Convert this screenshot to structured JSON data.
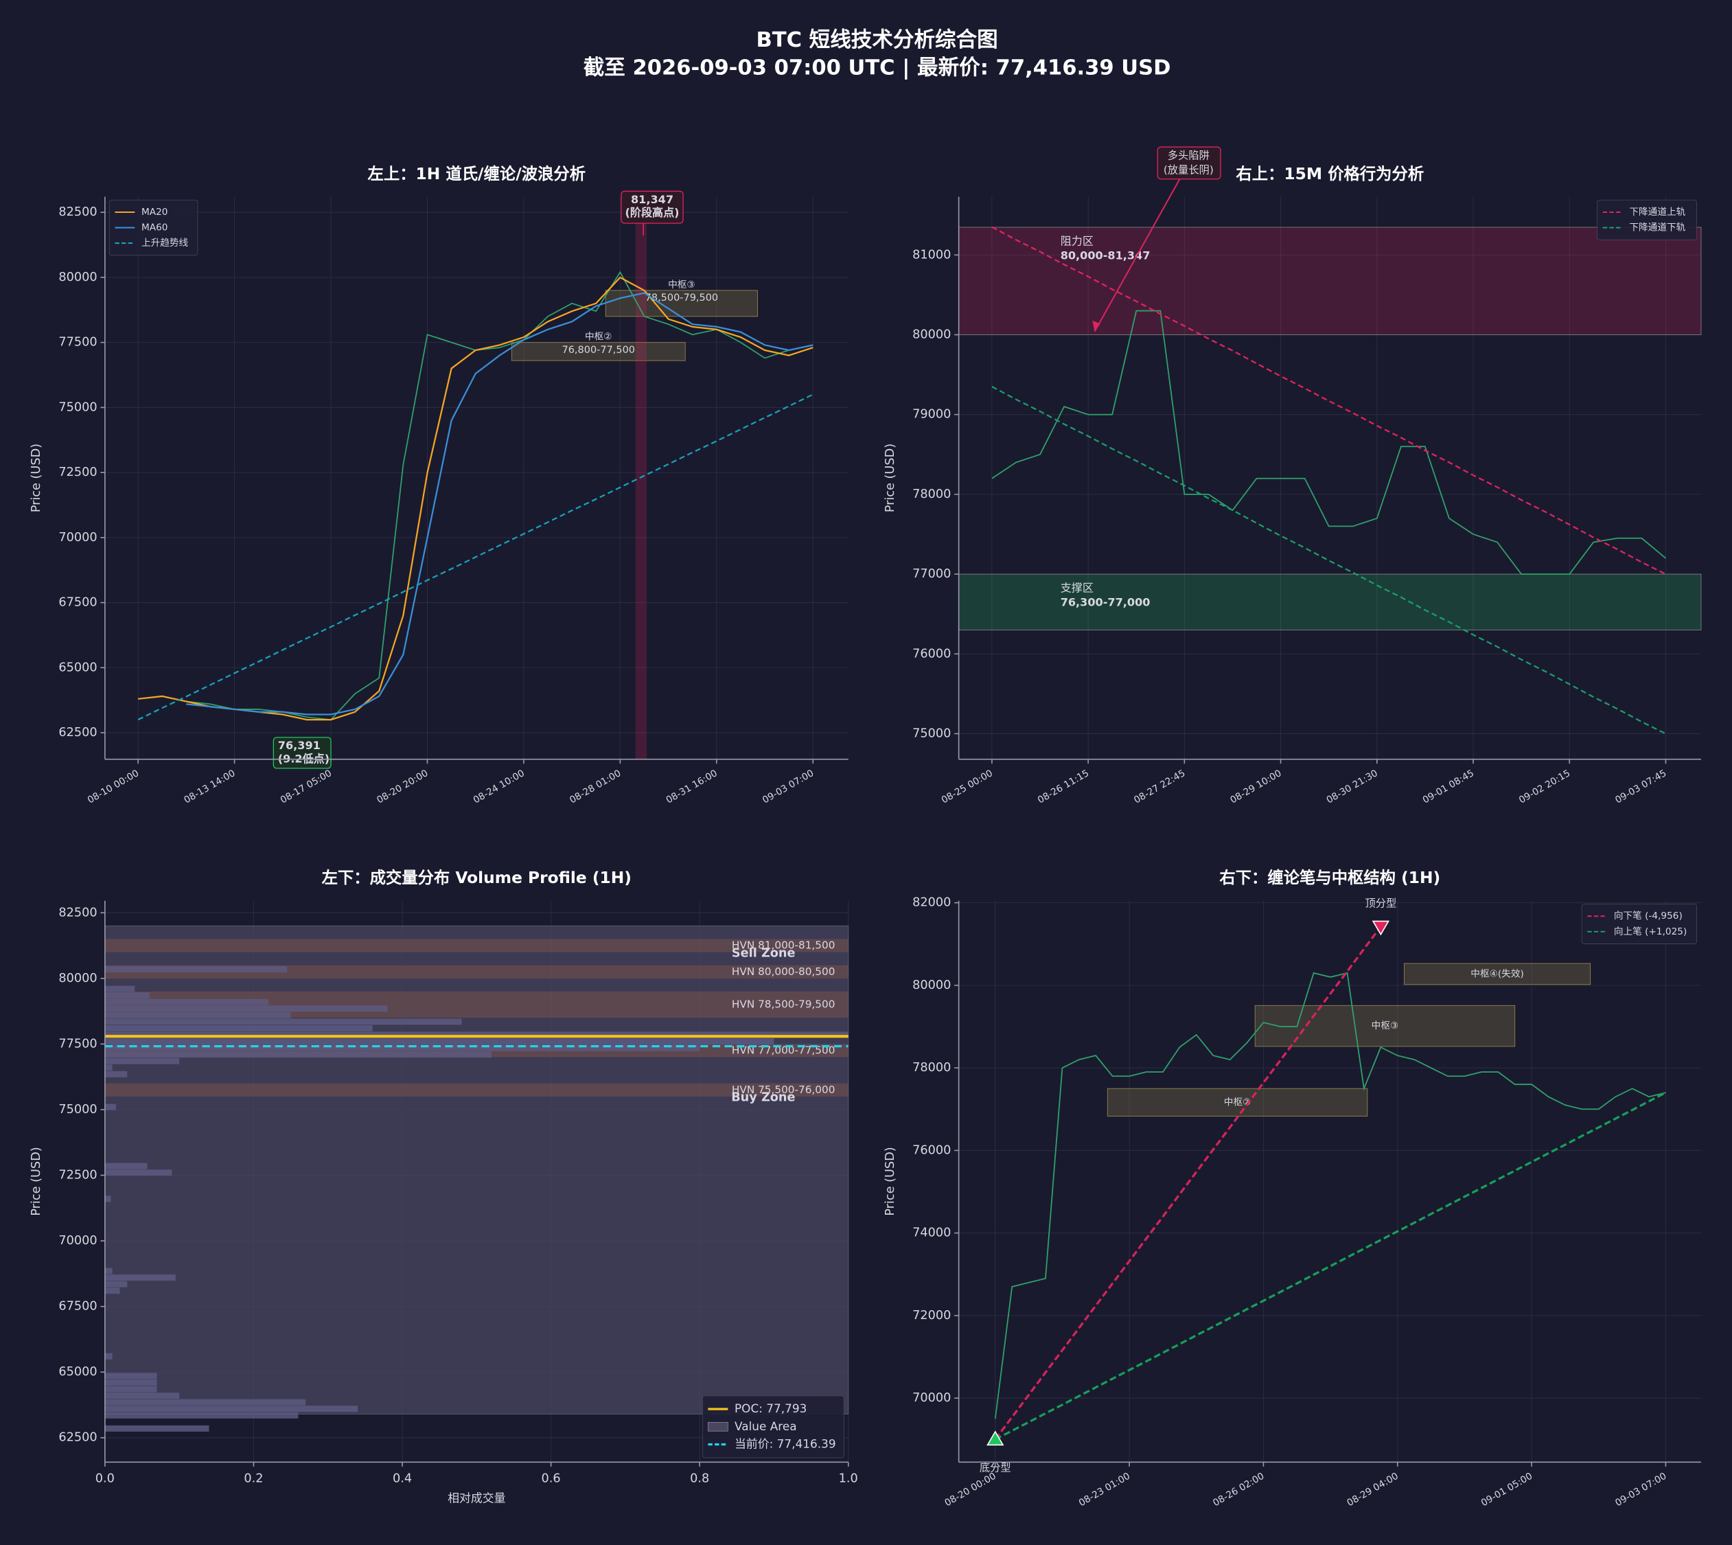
{
  "title": "BTC 短线技术分析综合图",
  "subtitle": "截至 2026-09-03 07:00 UTC | 最新价: 77,416.39 USD",
  "chart_data": [
    {
      "type": "line",
      "title": "左上：1H 道氏/缠论/波浪分析",
      "y_label": "Price (USD)",
      "categories": [
        "08-10 00:00",
        null,
        null,
        null,
        "08-13 14:00",
        null,
        null,
        null,
        "08-17 05:00",
        null,
        null,
        null,
        "08-20 20:00",
        null,
        null,
        null,
        "08-24 10:00",
        null,
        null,
        null,
        "08-28 01:00",
        null,
        null,
        null,
        "08-31 16:00",
        null,
        null,
        null,
        "09-03 07:00"
      ],
      "values": [
        63800,
        63900,
        63700,
        63600,
        63400,
        63400,
        63300,
        63100,
        63000,
        64000,
        64600,
        72800,
        77800,
        77500,
        77200,
        77300,
        77600,
        78500,
        79000,
        78700,
        80200,
        78500,
        78200,
        77800,
        78000,
        77500,
        76900,
        77200,
        77400
      ],
      "color": "#2ea36b",
      "series": [
        {
          "name": "MA20",
          "color": "#f5a623",
          "linestyle": "solid",
          "values": [
            63800,
            63900,
            63700,
            63500,
            63400,
            63300,
            63200,
            63000,
            63000,
            63300,
            64100,
            67000,
            72500,
            76500,
            77200,
            77400,
            77700,
            78300,
            78700,
            79000,
            80000,
            79500,
            78400,
            78100,
            78000,
            77700,
            77200,
            77000,
            77300
          ]
        },
        {
          "name": "MA60",
          "color": "#3a8fd9",
          "linestyle": "solid",
          "values": [
            null,
            null,
            63600,
            63500,
            63400,
            63300,
            63300,
            63200,
            63200,
            63400,
            63900,
            65500,
            70000,
            74500,
            76300,
            77000,
            77600,
            78000,
            78300,
            78900,
            79200,
            79400,
            78800,
            78200,
            78100,
            77900,
            77400,
            77200,
            77400
          ]
        },
        {
          "name": "上升趋势线",
          "color": "#17a2b8",
          "linestyle": "dashed",
          "values": [
            63000,
            63450,
            63890,
            64340,
            64790,
            65230,
            65680,
            66130,
            66570,
            67020,
            67460,
            67910,
            68360,
            68800,
            69250,
            69700,
            70140,
            70590,
            71040,
            71480,
            71930,
            72380,
            72820,
            73270,
            73710,
            74160,
            74610,
            75050,
            75500
          ]
        }
      ],
      "zones": [
        {
          "label": "中枢②",
          "range": "76,800-77,500",
          "low": 76800,
          "high": 77500,
          "color": "#8a7d4a"
        },
        {
          "label": "中枢③",
          "range": "78,500-79,500",
          "low": 78500,
          "high": 79500,
          "color": "#8a7d4a"
        }
      ],
      "low_label": [
        "76,391",
        "(9.2低点)"
      ],
      "high_label": [
        "81,347",
        "(阶段高点)"
      ],
      "ylim": [
        61480,
        83100
      ],
      "yticks": [
        62500,
        65000,
        67500,
        70000,
        72500,
        75000,
        77500,
        80000,
        82500
      ],
      "grid": true,
      "legend": "upper left"
    },
    {
      "type": "line",
      "title": "右上：15M 价格行为分析",
      "y_label": "Price (USD)",
      "categories": [
        "08-25 00:00",
        null,
        null,
        null,
        "08-26 11:15",
        null,
        null,
        null,
        "08-27 22:45",
        null,
        null,
        null,
        "08-29 10:00",
        null,
        null,
        null,
        "08-30 21:30",
        null,
        null,
        null,
        "09-01 08:45",
        null,
        null,
        null,
        "09-02 20:15",
        null,
        null,
        null,
        "09-03 07:45"
      ],
      "values": [
        78200,
        78400,
        78500,
        79100,
        79000,
        79000,
        80300,
        80300,
        78000,
        78000,
        77800,
        78200,
        78200,
        78200,
        77600,
        77600,
        77700,
        78600,
        78600,
        77700,
        77500,
        77400,
        77000,
        77000,
        77000,
        77400,
        77450,
        77450,
        77200
      ],
      "color": "#2ea36b",
      "series": [
        {
          "name": "下降通道上轨",
          "color": "#e0245e",
          "linestyle": "dashed",
          "values": [
            81350,
            81190,
            81040,
            80880,
            80730,
            80570,
            80420,
            80260,
            80110,
            79950,
            79800,
            79640,
            79480,
            79330,
            79170,
            79020,
            78860,
            78710,
            78550,
            78400,
            78240,
            78090,
            77930,
            77780,
            77620,
            77460,
            77310,
            77150,
            77000
          ]
        },
        {
          "name": "下降通道下轨",
          "color": "#1a9e6a",
          "linestyle": "dashed",
          "values": [
            79350,
            79190,
            79040,
            78880,
            78730,
            78570,
            78420,
            78260,
            78110,
            77950,
            77800,
            77640,
            77480,
            77330,
            77170,
            77020,
            76860,
            76710,
            76550,
            76400,
            76240,
            76090,
            75930,
            75780,
            75620,
            75460,
            75310,
            75150,
            75000
          ]
        }
      ],
      "zones": [
        {
          "label": "阻力区",
          "range": "80,000-81,347",
          "low": 80000,
          "high": 81347,
          "color": "#e0245e"
        },
        {
          "label": "支撑区",
          "range": "76,300-77,000",
          "low": 76300,
          "high": 77000,
          "color": "#22c55e"
        }
      ],
      "trap_label": [
        "多头陷阱",
        "(放量长阴)"
      ],
      "ylim": [
        74680,
        81730
      ],
      "yticks": [
        75000,
        76000,
        77000,
        78000,
        79000,
        80000,
        81000
      ],
      "grid": true,
      "legend": "upper right"
    },
    {
      "type": "barh",
      "title": "左下：成交量分布 Volume Profile (1H)",
      "y_label": "Price (USD)",
      "x_label": "相对成交量",
      "y": [
        62850,
        63350,
        63600,
        63850,
        64100,
        64350,
        64600,
        64850,
        65600,
        68100,
        68350,
        68600,
        68850,
        71600,
        72600,
        72850,
        75100,
        76350,
        76600,
        76850,
        77100,
        77350,
        77600,
        77850,
        78100,
        78350,
        78600,
        78850,
        79100,
        79350,
        79600,
        80350
      ],
      "values": [
        0.14,
        0.26,
        0.34,
        0.27,
        0.1,
        0.07,
        0.07,
        0.07,
        0.01,
        0.02,
        0.03,
        0.095,
        0.01,
        0.008,
        0.09,
        0.057,
        0.015,
        0.03,
        0.01,
        0.1,
        0.52,
        0.8,
        0.9,
        1.0,
        0.36,
        0.48,
        0.25,
        0.38,
        0.22,
        0.06,
        0.04,
        0.245
      ],
      "color": "#5c5a80",
      "value_area": {
        "name": "Value Area",
        "low": 63400,
        "high": 82000,
        "color": "#4a4562"
      },
      "hvn": [
        {
          "label": "HVN 81,000-81,500",
          "low": 81000,
          "high": 81500
        },
        {
          "label": "HVN 80,000-80,500",
          "low": 80000,
          "high": 80500
        },
        {
          "label": "HVN 78,500-79,500",
          "low": 78500,
          "high": 79500
        },
        {
          "label": "HVN 77,000-77,500",
          "low": 77000,
          "high": 77500
        },
        {
          "label": "HVN 75,500-76,000",
          "low": 75500,
          "high": 76000
        }
      ],
      "sell_zone": "Sell Zone",
      "buy_zone": "Buy Zone",
      "poc": {
        "name": "POC: 77,793",
        "value": 77793,
        "color": "#f5c518"
      },
      "current": {
        "name": "当前价: 77,416.39",
        "value": 77416.39,
        "color": "#22d3ee"
      },
      "xlim": [
        0,
        1
      ],
      "xticks": [
        {
          "value": 0,
          "label": "0.0"
        },
        0.2,
        0.4,
        0.6,
        0.8,
        {
          "value": 1,
          "label": "1.0"
        }
      ],
      "ylim": [
        61570,
        82960
      ],
      "yticks": [
        62500,
        65000,
        67500,
        70000,
        72500,
        75000,
        77500,
        80000,
        82500
      ],
      "grid": true,
      "legend": "lower right"
    },
    {
      "type": "line",
      "title": "右下：缠论笔与中枢结构 (1H)",
      "y_label": "Price (USD)",
      "categories": [
        "08-20 00:00",
        null,
        null,
        null,
        null,
        null,
        null,
        null,
        "08-23 01:00",
        null,
        null,
        null,
        null,
        null,
        null,
        null,
        "08-26 02:00",
        null,
        null,
        null,
        null,
        null,
        null,
        null,
        "08-29 04:00",
        null,
        null,
        null,
        null,
        null,
        null,
        null,
        "09-01 05:00",
        null,
        null,
        null,
        null,
        null,
        null,
        null,
        "09-03 07:00"
      ],
      "values": [
        69500,
        72700,
        72800,
        72900,
        78000,
        78200,
        78300,
        77800,
        77800,
        77900,
        77900,
        78500,
        78800,
        78300,
        78200,
        78600,
        79100,
        79000,
        79000,
        80300,
        80200,
        80300,
        77500,
        78500,
        78300,
        78200,
        78000,
        77800,
        77800,
        77900,
        77900,
        77600,
        77600,
        77300,
        77100,
        77000,
        77000,
        77300,
        77500,
        77300,
        77400
      ],
      "color": "#2ea36b",
      "series": [
        {
          "name": "向下笔 (-4,956)",
          "color": "#d6245a",
          "linestyle": "dashed",
          "values": [
            69000,
            69540,
            70080,
            70620,
            71160,
            71700,
            72240,
            72780,
            73320,
            73860,
            74400,
            74940,
            75480,
            76020,
            76560,
            77100,
            77640,
            78180,
            78720,
            79260,
            79800,
            80340,
            80880,
            81420,
            null,
            null,
            null,
            null,
            null,
            null,
            null,
            null,
            null,
            null,
            null,
            null,
            null,
            null,
            null,
            null,
            null
          ]
        },
        {
          "name": "向上笔 (+1,025)",
          "color": "#16a05a",
          "linestyle": "dashed",
          "values": [
            69000,
            69210,
            69420,
            69630,
            69840,
            70050,
            70260,
            70470,
            70680,
            70890,
            71100,
            71310,
            71520,
            71730,
            71940,
            72150,
            72360,
            72570,
            72780,
            72990,
            73200,
            73410,
            73620,
            73830,
            74040,
            74250,
            74460,
            74670,
            74880,
            75090,
            75300,
            75510,
            75720,
            75930,
            76140,
            76350,
            76560,
            76770,
            76980,
            77190,
            77400
          ]
        }
      ],
      "zones": [
        {
          "label": "中枢②",
          "low": 76830,
          "high": 77500,
          "color": "#8a7d4a"
        },
        {
          "label": "中枢③",
          "low": 78520,
          "high": 79510,
          "color": "#8a7d4a"
        },
        {
          "label": "中枢④(失效)",
          "low": 80020,
          "high": 80530,
          "color": "#8a7d4a"
        }
      ],
      "fractals": {
        "bottom": "底分型",
        "top": "顶分型"
      },
      "ylim": [
        68450,
        82050
      ],
      "yticks": [
        70000,
        72000,
        74000,
        76000,
        78000,
        80000,
        82000
      ],
      "grid": true,
      "legend": "upper right"
    }
  ]
}
